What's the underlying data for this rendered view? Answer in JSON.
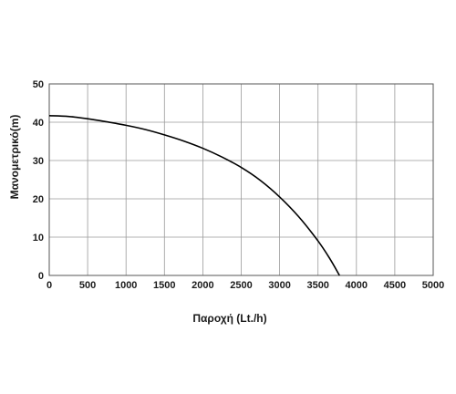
{
  "chart_data": {
    "type": "line",
    "title": "",
    "xlabel": "Παροχή (Lt./h)",
    "ylabel": "Μανομετρικό(m)",
    "xlim": [
      0,
      5000
    ],
    "ylim": [
      0,
      50
    ],
    "x_ticks": [
      "0",
      "500",
      "1000",
      "1500",
      "2000",
      "2500",
      "3000",
      "3500",
      "4000",
      "4500",
      "5000"
    ],
    "y_ticks": [
      "0",
      "10",
      "20",
      "30",
      "40",
      "50"
    ],
    "grid": true,
    "legend": "none",
    "series": [
      {
        "color": "#000000",
        "x": [
          0,
          250,
          500,
          750,
          1000,
          1250,
          1500,
          1750,
          2000,
          2250,
          2500,
          2750,
          3000,
          3250,
          3500,
          3650,
          3780
        ],
        "y": [
          41.7,
          41.5,
          40.9,
          40.1,
          39.2,
          38.1,
          36.7,
          35.1,
          33.2,
          30.9,
          28.2,
          24.8,
          20.5,
          15.3,
          9.0,
          4.5,
          0
        ]
      }
    ]
  }
}
